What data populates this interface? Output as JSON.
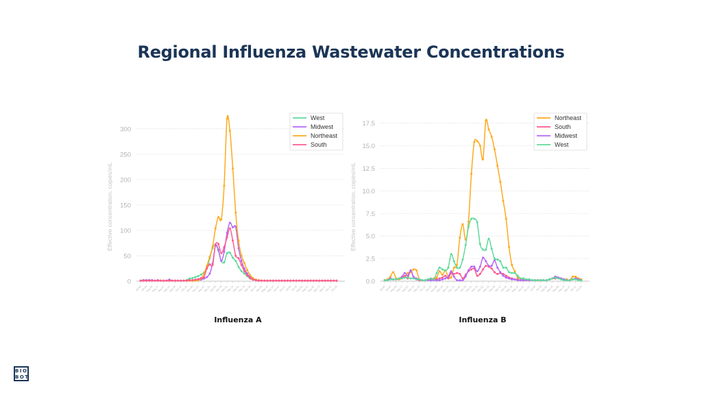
{
  "title": "Regional Influenza Wastewater Concentrations",
  "logo": {
    "line1": "BIO",
    "line2": "BOT"
  },
  "series_colors": {
    "West": "#5ed99b",
    "Midwest": "#b468f7",
    "Northeast": "#fcaa1c",
    "South": "#ff5a8e"
  },
  "chart_data": [
    {
      "type": "line",
      "title": "Influenza A",
      "ylabel": "Effective concentration, copies/mL",
      "xlabel": "",
      "ylim": [
        0,
        320
      ],
      "yticks": [
        0,
        50,
        100,
        150,
        200,
        250,
        300
      ],
      "ytick_labels": [
        "0",
        "50",
        "100",
        "150",
        "200",
        "250",
        "300"
      ],
      "grid": true,
      "legend_position": "top-right",
      "xtick_labels": [
        "Jul 06",
        "Jul 20",
        "Aug 03",
        "Aug 17",
        "Aug 31",
        "Sep 14",
        "Sep 28",
        "Oct 12",
        "Oct 26",
        "Nov 09",
        "Nov 23",
        "Dec 07",
        "Dec 21",
        "Jan 04",
        "Jan 18",
        "Feb 01",
        "Feb 15",
        "Mar 01",
        "Mar 15",
        "Mar 29",
        "Apr 12",
        "Apr 26",
        "May 10",
        "May 24",
        "Jun 07",
        "Jun 21",
        "Jul 05",
        "Jul 19",
        "Aug 02",
        "Aug 16",
        "Aug 30",
        "Sep 13",
        "Sep 27",
        "Oct 11",
        "Oct 25"
      ],
      "series": [
        {
          "name": "West",
          "values": [
            1,
            1,
            1,
            1,
            1,
            1,
            1,
            1,
            1,
            1,
            1,
            1,
            1,
            1,
            1,
            1,
            2,
            5,
            6,
            8,
            10,
            13,
            17,
            25,
            45,
            65,
            72,
            60,
            40,
            37,
            55,
            56,
            46,
            40,
            28,
            20,
            15,
            10,
            5,
            3,
            2,
            1,
            1,
            1,
            1,
            1,
            1,
            1,
            1,
            1,
            1,
            1,
            1,
            1,
            1,
            1,
            1,
            1,
            1,
            1,
            1,
            1,
            1,
            1,
            1,
            1,
            1,
            1,
            1
          ]
        },
        {
          "name": "Midwest",
          "values": [
            1,
            2,
            2,
            2,
            2,
            1,
            2,
            1,
            1,
            1,
            3,
            1,
            1,
            1,
            1,
            1,
            1,
            1,
            1,
            1,
            2,
            3,
            5,
            8,
            15,
            35,
            70,
            62,
            40,
            58,
            95,
            115,
            106,
            107,
            65,
            40,
            25,
            15,
            8,
            4,
            2,
            1,
            1,
            1,
            1,
            1,
            1,
            1,
            1,
            1,
            1,
            1,
            1,
            1,
            1,
            1,
            1,
            1,
            1,
            1,
            1,
            1,
            1,
            1,
            1,
            1,
            1,
            1,
            1
          ]
        },
        {
          "name": "Northeast",
          "values": [
            1,
            1,
            1,
            1,
            1,
            1,
            1,
            1,
            1,
            1,
            1,
            1,
            1,
            1,
            1,
            1,
            1,
            1,
            1,
            1,
            2,
            5,
            15,
            30,
            48,
            68,
            104,
            126,
            122,
            188,
            320,
            296,
            222,
            135,
            80,
            50,
            36,
            22,
            12,
            6,
            3,
            2,
            1,
            1,
            1,
            1,
            1,
            1,
            1,
            1,
            1,
            1,
            1,
            1,
            1,
            1,
            1,
            1,
            1,
            1,
            1,
            1,
            1,
            1,
            1,
            1,
            1,
            1,
            1
          ]
        },
        {
          "name": "South",
          "values": [
            1,
            1,
            1,
            1,
            1,
            1,
            1,
            1,
            1,
            1,
            1,
            1,
            1,
            1,
            1,
            1,
            1,
            2,
            2,
            3,
            4,
            6,
            8,
            25,
            33,
            32,
            72,
            73,
            55,
            67,
            86,
            104,
            80,
            50,
            45,
            32,
            20,
            12,
            6,
            3,
            2,
            1,
            1,
            1,
            1,
            1,
            1,
            1,
            1,
            1,
            1,
            1,
            1,
            1,
            1,
            1,
            1,
            1,
            1,
            1,
            1,
            1,
            1,
            1,
            1,
            1,
            1,
            1,
            1
          ]
        }
      ]
    },
    {
      "type": "line",
      "title": "Influenza B",
      "ylabel": "Effective concentration, copies/mL",
      "xlabel": "",
      "ylim": [
        0,
        18
      ],
      "yticks": [
        0,
        2.5,
        5,
        7.5,
        10,
        12.5,
        15,
        17.5
      ],
      "ytick_labels": [
        "0.0",
        "2.5",
        "5.0",
        "7.5",
        "10.0",
        "12.5",
        "15.0",
        "17.5"
      ],
      "grid": true,
      "legend_position": "top-right",
      "xtick_labels": [
        "Jul 06",
        "Jul 20",
        "Aug 03",
        "Aug 17",
        "Aug 31",
        "Sep 14",
        "Sep 28",
        "Oct 12",
        "Oct 26",
        "Nov 09",
        "Nov 23",
        "Dec 07",
        "Dec 21",
        "Jan 04",
        "Jan 18",
        "Feb 01",
        "Feb 15",
        "Mar 01",
        "Mar 15",
        "Mar 29",
        "Apr 12",
        "Apr 26",
        "May 10",
        "May 24",
        "Jun 07",
        "Jun 21",
        "Jul 05",
        "Jul 19",
        "Aug 02",
        "Aug 16",
        "Aug 30",
        "Sep 13",
        "Sep 27",
        "Oct 11",
        "Oct 25"
      ],
      "series": [
        {
          "name": "Northeast",
          "values": [
            0.1,
            0.2,
            0.5,
            1.0,
            0.3,
            0.2,
            0.3,
            0.5,
            0.9,
            1.0,
            1.3,
            1.2,
            0.2,
            0.1,
            0.1,
            0.2,
            0.2,
            0.3,
            0.4,
            1.1,
            0.7,
            1.2,
            0.5,
            0.4,
            1.5,
            1.8,
            4.8,
            6.3,
            4.6,
            6.6,
            11.9,
            15.4,
            15.5,
            15.0,
            13.5,
            17.8,
            16.8,
            16.0,
            14.6,
            12.8,
            11.0,
            8.9,
            6.9,
            3.8,
            1.8,
            1.1,
            0.4,
            0.3,
            0.1,
            0.1,
            0.1,
            0.1,
            0.1,
            0.1,
            0.1,
            0.1,
            0.1,
            0.2,
            0.3,
            0.5,
            0.4,
            0.3,
            0.2,
            0.2,
            0.1,
            0.5,
            0.5,
            0.3,
            0.2
          ]
        },
        {
          "name": "South",
          "values": [
            0.1,
            0.1,
            0.2,
            0.2,
            0.2,
            0.3,
            0.4,
            0.6,
            0.3,
            1.2,
            0.4,
            0.2,
            0.1,
            0.1,
            0.1,
            0.2,
            0.3,
            0.2,
            0.2,
            0.3,
            0.4,
            0.6,
            0.3,
            0.9,
            0.8,
            0.9,
            0.8,
            0.3,
            0.7,
            1.1,
            1.3,
            1.4,
            0.6,
            0.8,
            1.3,
            1.7,
            1.6,
            1.4,
            1.0,
            0.8,
            0.9,
            0.8,
            0.6,
            0.4,
            0.3,
            0.2,
            0.2,
            0.1,
            0.1,
            0.1,
            0.1,
            0.1,
            0.1,
            0.1,
            0.1,
            0.1,
            0.1,
            0.2,
            0.3,
            0.3,
            0.4,
            0.3,
            0.2,
            0.1,
            0.1,
            0.2,
            0.3,
            0.2,
            0.1
          ]
        },
        {
          "name": "Midwest",
          "values": [
            0.1,
            0.1,
            0.3,
            0.2,
            0.2,
            0.3,
            0.5,
            0.9,
            0.6,
            1.2,
            0.5,
            0.3,
            0.2,
            0.1,
            0.1,
            0.1,
            0.1,
            0.1,
            0.1,
            0.1,
            0.2,
            0.3,
            0.5,
            1.1,
            0.5,
            0.1,
            0.1,
            0.1,
            0.5,
            1.2,
            1.6,
            1.6,
            1.1,
            1.6,
            2.6,
            2.2,
            1.7,
            1.7,
            2.3,
            1.5,
            1.0,
            0.6,
            0.4,
            0.3,
            0.2,
            0.2,
            0.1,
            0.1,
            0.1,
            0.1,
            0.1,
            0.1,
            0.1,
            0.1,
            0.1,
            0.1,
            0.1,
            0.2,
            0.3,
            0.5,
            0.4,
            0.3,
            0.2,
            0.1,
            0.1,
            0.2,
            0.3,
            0.2,
            0.1
          ]
        },
        {
          "name": "West",
          "values": [
            0.1,
            0.1,
            0.2,
            0.2,
            0.2,
            0.3,
            0.3,
            0.4,
            0.4,
            0.3,
            0.3,
            0.2,
            0.2,
            0.1,
            0.1,
            0.2,
            0.3,
            0.2,
            0.9,
            1.5,
            1.3,
            1.2,
            1.5,
            3.0,
            2.2,
            1.5,
            1.5,
            2.4,
            4.0,
            6.0,
            6.9,
            6.9,
            6.5,
            4.1,
            3.5,
            3.5,
            4.7,
            3.6,
            2.5,
            2.4,
            2.2,
            1.5,
            1.5,
            1.0,
            0.9,
            0.9,
            0.6,
            0.3,
            0.3,
            0.2,
            0.2,
            0.1,
            0.1,
            0.1,
            0.1,
            0.1,
            0.1,
            0.2,
            0.3,
            0.4,
            0.3,
            0.2,
            0.1,
            0.1,
            0.1,
            0.2,
            0.2,
            0.1,
            0.1
          ]
        }
      ]
    }
  ]
}
